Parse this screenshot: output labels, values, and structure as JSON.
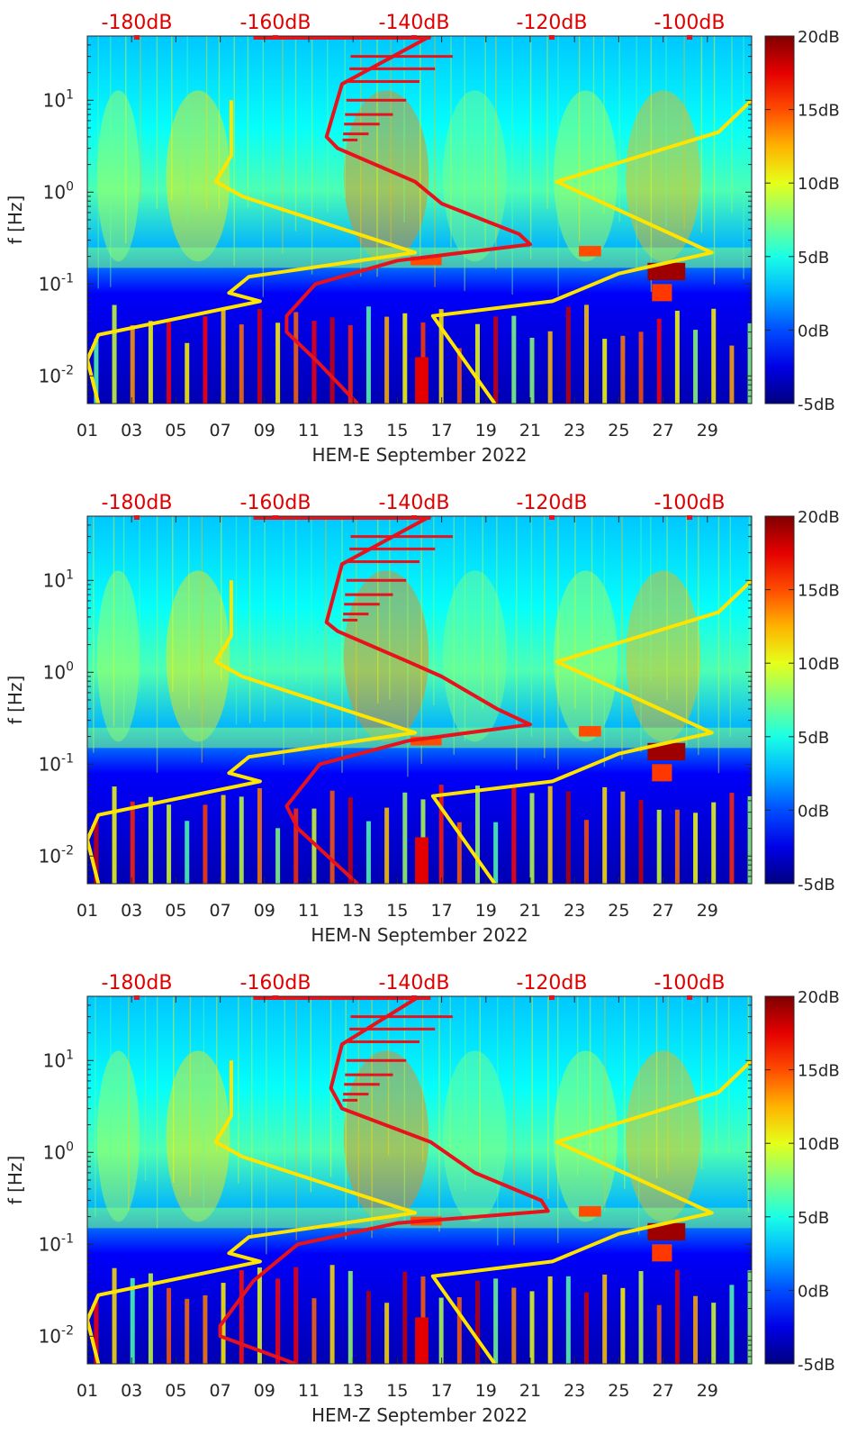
{
  "chart_data": [
    {
      "type": "heatmap",
      "xlabel": "HEM-E September 2022",
      "ylabel": "f [Hz]",
      "x_ticks": [
        "01",
        "03",
        "05",
        "07",
        "09",
        "11",
        "13",
        "15",
        "17",
        "19",
        "21",
        "23",
        "25",
        "27",
        "29"
      ],
      "y_ticks": [
        "10^-2",
        "10^-1",
        "10^0",
        "10^1"
      ],
      "top_ticks": [
        "-180dB",
        "-160dB",
        "-140dB",
        "-120dB",
        "-100dB"
      ],
      "colorbar_ticks": [
        "20dB",
        "15dB",
        "10dB",
        "5dB",
        "0dB",
        "-5dB"
      ],
      "colorbar_range": [
        -5,
        20
      ],
      "xlim": [
        1,
        31
      ],
      "ylim": [
        0.005,
        50
      ],
      "y_scale": "log",
      "colors": {
        "yellow_curve": "#ffe400",
        "red_curve": "#e8121c",
        "top_axis_text": "#e00000"
      },
      "series": [
        {
          "color": "yellow",
          "points": [
            [
              7.5,
              10
            ],
            [
              7.5,
              2.5
            ],
            [
              6.8,
              1.3
            ],
            [
              8,
              0.9
            ],
            [
              15.8,
              0.22
            ],
            [
              8.3,
              0.12
            ],
            [
              7.4,
              0.08
            ],
            [
              8.8,
              0.065
            ],
            [
              1.5,
              0.028
            ],
            [
              1,
              0.015
            ],
            [
              1.5,
              0.005
            ]
          ]
        },
        {
          "color": "yellow",
          "points": [
            [
              31,
              10
            ],
            [
              29.5,
              4.5
            ],
            [
              22.2,
              1.3
            ],
            [
              29.2,
              0.22
            ],
            [
              25,
              0.13
            ],
            [
              22,
              0.065
            ],
            [
              16.6,
              0.045
            ],
            [
              19.4,
              0.005
            ]
          ]
        },
        {
          "color": "red",
          "points": [
            [
              16.5,
              50
            ],
            [
              12.5,
              15
            ],
            [
              11.8,
              4
            ],
            [
              12.3,
              3
            ],
            [
              15.8,
              1.3
            ],
            [
              17,
              0.75
            ],
            [
              20.5,
              0.35
            ],
            [
              21,
              0.27
            ],
            [
              15,
              0.18
            ],
            [
              11.3,
              0.1
            ],
            [
              10,
              0.045
            ],
            [
              10,
              0.03
            ],
            [
              11.3,
              0.015
            ],
            [
              13.2,
              0.005
            ]
          ]
        }
      ]
    },
    {
      "type": "heatmap",
      "xlabel": "HEM-N September 2022",
      "ylabel": "f [Hz]",
      "x_ticks": [
        "01",
        "03",
        "05",
        "07",
        "09",
        "11",
        "13",
        "15",
        "17",
        "19",
        "21",
        "23",
        "25",
        "27",
        "29"
      ],
      "y_ticks": [
        "10^-2",
        "10^-1",
        "10^0",
        "10^1"
      ],
      "top_ticks": [
        "-180dB",
        "-160dB",
        "-140dB",
        "-120dB",
        "-100dB"
      ],
      "colorbar_ticks": [
        "20dB",
        "15dB",
        "10dB",
        "5dB",
        "0dB",
        "-5dB"
      ],
      "colorbar_range": [
        -5,
        20
      ],
      "xlim": [
        1,
        31
      ],
      "ylim": [
        0.005,
        50
      ],
      "y_scale": "log",
      "series": [
        {
          "color": "yellow",
          "points": [
            [
              7.5,
              10
            ],
            [
              7.5,
              2.5
            ],
            [
              6.8,
              1.3
            ],
            [
              8,
              0.9
            ],
            [
              15.8,
              0.22
            ],
            [
              8.3,
              0.12
            ],
            [
              7.4,
              0.08
            ],
            [
              8.8,
              0.065
            ],
            [
              1.5,
              0.028
            ],
            [
              1,
              0.015
            ],
            [
              1.5,
              0.005
            ]
          ]
        },
        {
          "color": "yellow",
          "points": [
            [
              31,
              10
            ],
            [
              29.5,
              4.5
            ],
            [
              22.2,
              1.3
            ],
            [
              29.2,
              0.22
            ],
            [
              25,
              0.13
            ],
            [
              22,
              0.065
            ],
            [
              16.6,
              0.045
            ],
            [
              19.4,
              0.005
            ]
          ]
        },
        {
          "color": "red",
          "points": [
            [
              16.5,
              50
            ],
            [
              12.5,
              15
            ],
            [
              11.8,
              3.5
            ],
            [
              12.3,
              2.8
            ],
            [
              15.5,
              1.3
            ],
            [
              17,
              0.9
            ],
            [
              19.5,
              0.4
            ],
            [
              21,
              0.27
            ],
            [
              15.5,
              0.18
            ],
            [
              11.5,
              0.1
            ],
            [
              10,
              0.035
            ],
            [
              10.5,
              0.02
            ],
            [
              13.2,
              0.005
            ]
          ]
        }
      ]
    },
    {
      "type": "heatmap",
      "xlabel": "HEM-Z September 2022",
      "ylabel": "f [Hz]",
      "x_ticks": [
        "01",
        "03",
        "05",
        "07",
        "09",
        "11",
        "13",
        "15",
        "17",
        "19",
        "21",
        "23",
        "25",
        "27",
        "29"
      ],
      "y_ticks": [
        "10^-2",
        "10^-1",
        "10^0",
        "10^1"
      ],
      "top_ticks": [
        "-180dB",
        "-160dB",
        "-140dB",
        "-120dB",
        "-100dB"
      ],
      "colorbar_ticks": [
        "20dB",
        "15dB",
        "10dB",
        "5dB",
        "0dB",
        "-5dB"
      ],
      "colorbar_range": [
        -5,
        20
      ],
      "xlim": [
        1,
        31
      ],
      "ylim": [
        0.005,
        50
      ],
      "y_scale": "log",
      "series": [
        {
          "color": "yellow",
          "points": [
            [
              7.5,
              10
            ],
            [
              7.5,
              2.5
            ],
            [
              6.8,
              1.3
            ],
            [
              8,
              0.9
            ],
            [
              15.8,
              0.22
            ],
            [
              8.3,
              0.12
            ],
            [
              7.4,
              0.08
            ],
            [
              8.8,
              0.065
            ],
            [
              1.5,
              0.028
            ],
            [
              1,
              0.015
            ],
            [
              1.5,
              0.005
            ]
          ]
        },
        {
          "color": "yellow",
          "points": [
            [
              31,
              10
            ],
            [
              29.5,
              4.5
            ],
            [
              22.2,
              1.3
            ],
            [
              29.2,
              0.22
            ],
            [
              25,
              0.13
            ],
            [
              22,
              0.065
            ],
            [
              16.6,
              0.045
            ],
            [
              19.4,
              0.005
            ]
          ]
        },
        {
          "color": "red",
          "points": [
            [
              16,
              50
            ],
            [
              12.5,
              15
            ],
            [
              12,
              5
            ],
            [
              12.5,
              3
            ],
            [
              16.5,
              1.3
            ],
            [
              18.5,
              0.6
            ],
            [
              21.5,
              0.3
            ],
            [
              21.8,
              0.23
            ],
            [
              15,
              0.17
            ],
            [
              10.5,
              0.1
            ],
            [
              8.5,
              0.04
            ],
            [
              7,
              0.013
            ],
            [
              7,
              0.01
            ],
            [
              10.4,
              0.005
            ]
          ]
        }
      ]
    }
  ]
}
